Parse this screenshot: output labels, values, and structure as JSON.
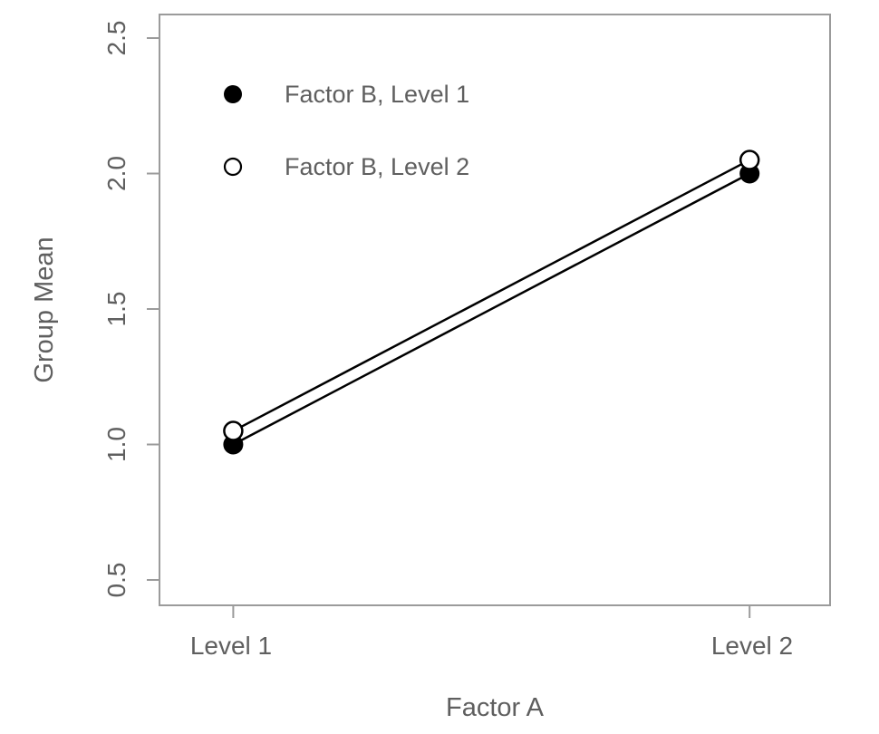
{
  "chart_data": {
    "type": "line",
    "title": "",
    "xlabel": "Factor A",
    "ylabel": "Group Mean",
    "categories": [
      "Level 1",
      "Level 2"
    ],
    "series": [
      {
        "name": "Factor B, Level 1",
        "marker": "filled-circle",
        "values": [
          1.0,
          2.0
        ]
      },
      {
        "name": "Factor B, Level 2",
        "marker": "open-circle",
        "values": [
          1.05,
          2.05
        ]
      }
    ],
    "ylim": [
      0.5,
      2.5
    ],
    "yticks": [
      "0.5",
      "1.0",
      "1.5",
      "2.0",
      "2.5"
    ],
    "ytick_values": [
      0.5,
      1.0,
      1.5,
      2.0,
      2.5
    ],
    "grid": false,
    "legend_position": "top-left"
  },
  "colors": {
    "series": "#000000",
    "axis_text": "#5f5f5f",
    "axis_line": "#9b9b9b",
    "background": "#ffffff"
  }
}
